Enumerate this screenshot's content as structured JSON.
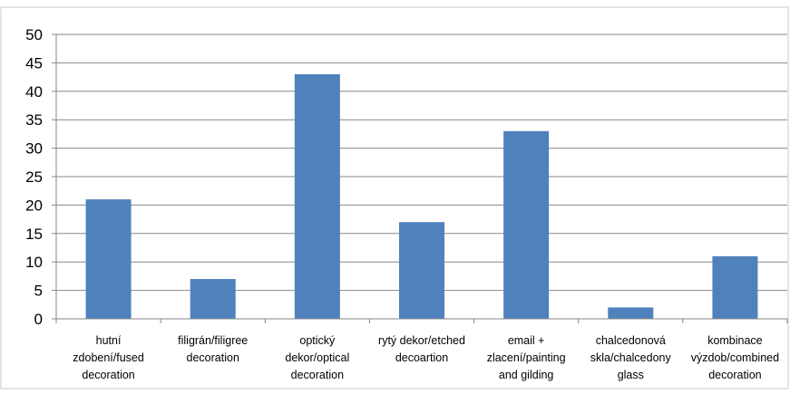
{
  "chart_data": {
    "type": "bar",
    "title": "",
    "xlabel": "",
    "ylabel": "",
    "ylim": [
      0,
      50
    ],
    "yticks": [
      0,
      5,
      10,
      15,
      20,
      25,
      30,
      35,
      40,
      45,
      50
    ],
    "grid": true,
    "legend": "none",
    "bar_color": "#4F81BD",
    "categories": [
      [
        "hutní",
        "zdobení/fused",
        "decoration"
      ],
      [
        "filigrán/filigree",
        "decoration"
      ],
      [
        "optický",
        "dekor/optical",
        "decoration"
      ],
      [
        "rytý dekor/etched",
        "decoartion"
      ],
      [
        "email +",
        "zlacení/painting",
        "and gilding"
      ],
      [
        "chalcedonová",
        "skla/chalcedony",
        "glass"
      ],
      [
        "kombinace",
        "výzdob/combined",
        "decoration"
      ]
    ],
    "values": [
      21,
      7,
      43,
      17,
      33,
      2,
      11
    ]
  }
}
